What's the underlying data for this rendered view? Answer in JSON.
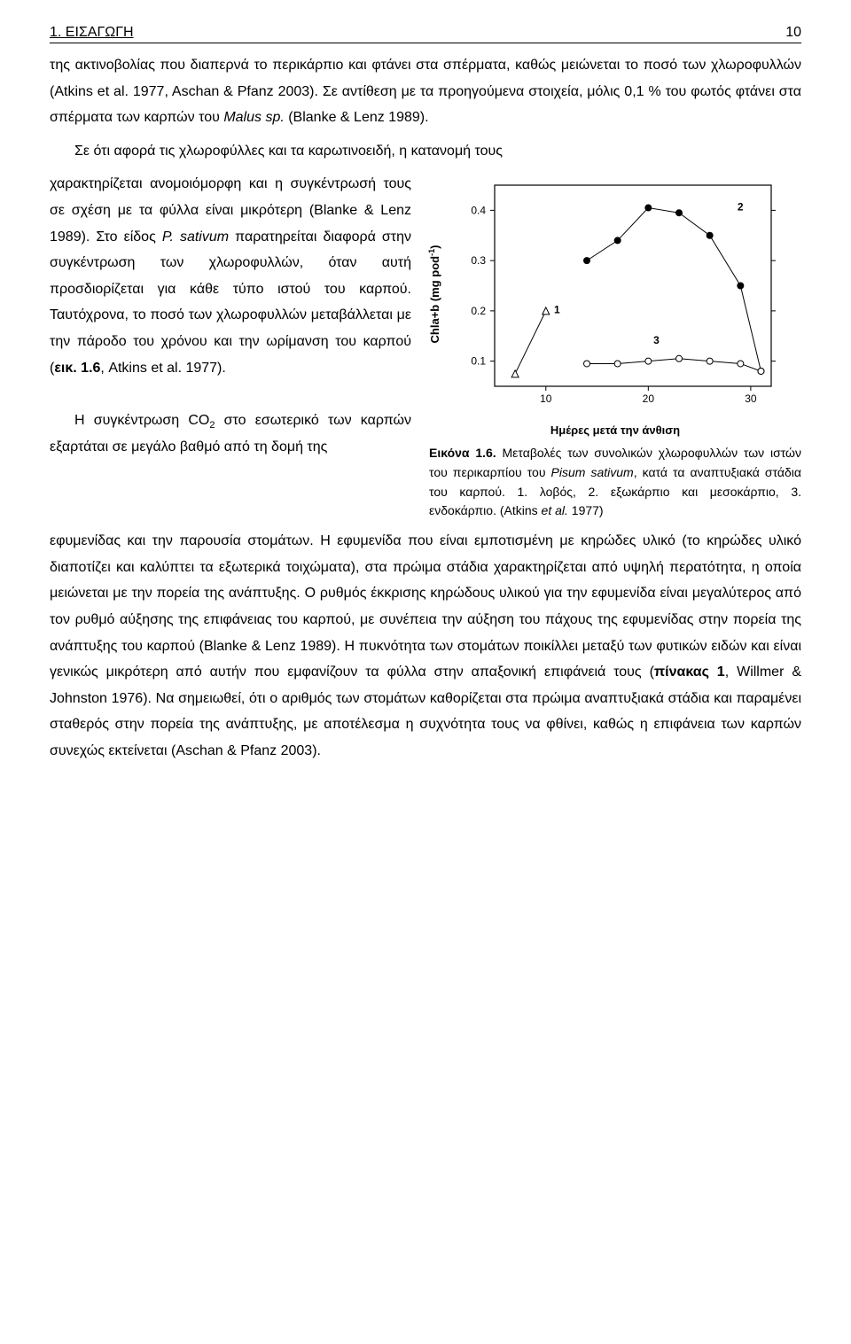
{
  "header": {
    "section": "1. ΕΙΣΑΓΩΓΗ",
    "page_number": "10"
  },
  "para1": "της ακτινοβολίας που διαπερνά το περικάρπιο και φτάνει στα σπέρματα, καθώς μειώνεται το ποσό των χλωροφυλλών (Atkins et al. 1977, Aschan & Pfanz 2003). Σε αντίθεση με τα προηγούμενα στοιχεία, μόλις 0,1 % του φωτός φτάνει στα σπέρματα των καρπών του ",
  "para1_italic": "Malus sp.",
  "para1_tail": " (Blanke & Lenz 1989).",
  "para2_lead": "Σε ότι αφορά τις χλωροφύλλες και τα καρωτινοειδή, η κατανομή τους ",
  "para2_split_1": "χαρακτηρίζεται ανομοιόμορφη και η συγκέντρωσή τους σε σχέση με τα φύλλα είναι μικρότερη (Blanke & Lenz 1989). Στο είδος ",
  "para2_italic": "P. sativum",
  "para2_split_2": " παρατηρείται διαφορά στην συγκέντρωση των χλωροφυλλών, όταν αυτή προσδιορίζεται για κάθε τύπο ιστού του καρπού. Ταυτόχρονα, το ποσό των χλωροφυλλών μεταβάλλεται με την πάροδο του χρόνου και την ωρίμανση του καρπού (",
  "para2_bold_ref": "εικ. 1.6",
  "para2_split_3": ", Atkins et al. 1977).",
  "para3": "Η συγκέντρωση CO",
  "para3_sub": "2",
  "para3_cont": " στο εσωτερικό των καρπών εξαρτάται σε μεγάλο βαθμό από τη δομή της",
  "para_bottom_a": "εφυμενίδας και την παρουσία στομάτων. Η εφυμενίδα που είναι εμποτισμένη με κηρώδες υλικό (το κηρώδες υλικό διαποτίζει και καλύπτει τα εξωτερικά τοιχώματα), στα πρώιμα στάδια χαρακτηρίζεται από υψηλή περατότητα, η οποία μειώνεται με την πορεία της ανάπτυξης. Ο ρυθμός έκκρισης κηρώδους υλικού για την εφυμενίδα είναι μεγαλύτερος από τον ρυθμό αύξησης της επιφάνειας του καρπού, με συνέπεια την αύξηση του πάχους της εφυμενίδας στην πορεία της ανάπτυξης του καρπού (Blanke & Lenz 1989). Η πυκνότητα των στομάτων ποικίλλει μεταξύ των φυτικών ειδών και είναι γενικώς μικρότερη από αυτήν που εμφανίζουν τα φύλλα στην απαξονική επιφάνειά τους (",
  "para_bottom_bold": "πίνακας 1",
  "para_bottom_b": ", Willmer & Johnston 1976). Να σημειωθεί, ότι ο αριθμός των στομάτων καθορίζεται στα πρώιμα αναπτυξιακά στάδια και παραμένει σταθερός στην πορεία της ανάπτυξης, με αποτέλεσμα η συχνότητα τους να φθίνει, καθώς η επιφάνεια των καρπών συνεχώς εκτείνεται (Aschan & Pfanz 2003).",
  "figure": {
    "ylabel_a": "Chla+b (mg pod",
    "ylabel_sup": "-1",
    "ylabel_b": ")",
    "xlabel": "Ημέρες μετά την άνθιση",
    "caption_lead": "Εικόνα 1.6.",
    "caption_body": " Μεταβολές των συνολικών χλωροφυλλών των ιστών του περικαρπίου του ",
    "caption_italic": "Pisum sativum",
    "caption_tail": ", κατά τα αναπτυξιακά στάδια του καρπού. 1. λοβός, 2. εξωκάρπιο και μεσοκάρπιο, 3. ενδοκάρπιο. (Atkins ",
    "caption_etal": "et al.",
    "caption_end": " 1977)",
    "chart": {
      "type": "line",
      "background_color": "#ffffff",
      "axis_color": "#000000",
      "font_family": "Arial",
      "xlim": [
        5,
        32
      ],
      "ylim": [
        0.05,
        0.45
      ],
      "xtick_labels": [
        "10",
        "20",
        "30"
      ],
      "xtick_positions": [
        10,
        20,
        30
      ],
      "ytick_labels": [
        "0.1",
        "0.2",
        "0.3",
        "0.4"
      ],
      "ytick_positions": [
        0.1,
        0.2,
        0.3,
        0.4
      ],
      "series_labels": {
        "1": "1",
        "2": "2",
        "3": "3"
      },
      "label_fontsize": 12,
      "tick_fontsize": 12,
      "series": [
        {
          "name": "1",
          "marker": "triangle",
          "color": "#000000",
          "fill": "#ffffff",
          "line_width": 1,
          "points": [
            [
              7,
              0.075
            ],
            [
              10,
              0.2
            ]
          ]
        },
        {
          "name": "2",
          "marker": "circle-filled",
          "color": "#000000",
          "fill": "#000000",
          "line_width": 1,
          "points": [
            [
              14,
              0.3
            ],
            [
              17,
              0.34
            ],
            [
              20,
              0.405
            ],
            [
              23,
              0.395
            ],
            [
              26,
              0.35
            ],
            [
              29,
              0.25
            ],
            [
              31,
              0.08
            ]
          ]
        },
        {
          "name": "3",
          "marker": "circle-open",
          "color": "#000000",
          "fill": "#ffffff",
          "line_width": 1,
          "points": [
            [
              14,
              0.095
            ],
            [
              17,
              0.095
            ],
            [
              20,
              0.1
            ],
            [
              23,
              0.105
            ],
            [
              26,
              0.1
            ],
            [
              29,
              0.095
            ],
            [
              31,
              0.08
            ]
          ]
        }
      ],
      "series_label_pos": {
        "1": [
          10.8,
          0.195
        ],
        "2": [
          28.7,
          0.4
        ],
        "3": [
          20.5,
          0.135
        ]
      }
    }
  }
}
